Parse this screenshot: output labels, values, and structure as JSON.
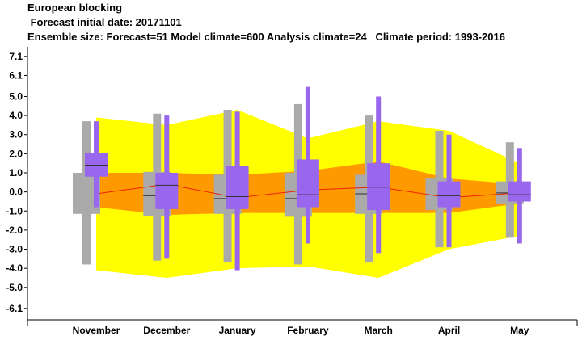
{
  "header": {
    "title": "European blocking",
    "line2": " Forecast initial date: 20171101",
    "line3": "Ensemble size: Forecast=51 Model climate=600 Analysis climate=24   Climate period: 1993-2016"
  },
  "colors": {
    "yellow": "#ffff00",
    "orange": "#ff9900",
    "grey": "#aaaaaa",
    "purple": "#9966ee",
    "median_line": "#ee2200",
    "median_tick": "#333333"
  },
  "chart_data": {
    "type": "box",
    "categories": [
      "November",
      "December",
      "January",
      "February",
      "March",
      "April",
      "May"
    ],
    "yticks": [
      7.1,
      6.1,
      5.0,
      4.0,
      3.0,
      2.0,
      1.0,
      0.0,
      -1.0,
      -2.0,
      -3.0,
      -4.0,
      -5.0,
      -6.1
    ],
    "ytick_labels": [
      "7.1",
      "6.1",
      "5.0",
      "4.0",
      "3.0",
      "2.0",
      "1.0",
      "0.0",
      "-1.0",
      "-2.0",
      "-3.0",
      "-4.0",
      "-5.0",
      "-6.1"
    ],
    "ylim": [
      -6.7,
      7.6
    ],
    "analysis_climate_band": {
      "lower": [
        -4.1,
        -4.5,
        -4.0,
        -3.9,
        -4.5,
        -3.0,
        -2.3
      ],
      "upper": [
        3.9,
        3.5,
        4.3,
        2.8,
        3.7,
        3.2,
        1.5
      ]
    },
    "analysis_climate_inner_band": {
      "lower": [
        -0.8,
        -1.2,
        -1.1,
        -1.1,
        -1.1,
        -1.1,
        -0.6
      ],
      "upper": [
        1.0,
        1.0,
        0.9,
        1.1,
        1.6,
        0.7,
        0.4
      ]
    },
    "analysis_climate_median": [
      -0.1,
      0.4,
      -0.3,
      0.1,
      0.25,
      -0.3,
      -0.05
    ],
    "model_climate": {
      "min": [
        -3.8,
        -3.6,
        -3.7,
        -3.8,
        -3.7,
        -2.9,
        -2.4
      ],
      "q1": [
        -1.15,
        -1.25,
        -1.15,
        -1.3,
        -1.15,
        -0.95,
        -0.6
      ],
      "median": [
        0.05,
        -0.2,
        -0.35,
        -0.35,
        -0.1,
        0.05,
        -0.05
      ],
      "q3": [
        1.0,
        1.05,
        0.9,
        1.0,
        0.9,
        0.7,
        0.55
      ],
      "max": [
        3.7,
        4.1,
        4.3,
        4.6,
        4.0,
        3.2,
        2.6
      ]
    },
    "forecast": {
      "min": [
        -0.8,
        -3.5,
        -4.1,
        -2.7,
        -3.2,
        -2.9,
        -2.7
      ],
      "p10": [
        0.8,
        -0.9,
        -0.9,
        -0.8,
        -0.95,
        -0.8,
        -0.5
      ],
      "p25": [
        1.1,
        -0.6,
        -0.6,
        -0.2,
        -0.2,
        -0.4,
        -0.2
      ],
      "median": [
        1.4,
        0.35,
        -0.25,
        -0.15,
        0.25,
        -0.2,
        -0.15
      ],
      "p75": [
        1.7,
        0.5,
        0.6,
        0.6,
        0.7,
        0.3,
        0.2
      ],
      "p90": [
        2.05,
        1.0,
        1.35,
        1.7,
        1.5,
        0.55,
        0.55
      ],
      "max": [
        3.7,
        4.0,
        4.2,
        5.5,
        5.0,
        3.0,
        2.3
      ]
    }
  }
}
